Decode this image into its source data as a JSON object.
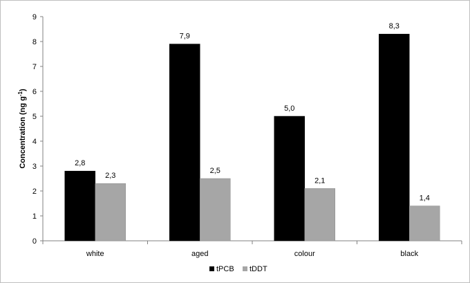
{
  "chart_data": {
    "type": "bar",
    "categories": [
      "white",
      "aged",
      "colour",
      "black"
    ],
    "series": [
      {
        "name": "tPCB",
        "color": "#000000",
        "values": [
          2.8,
          7.9,
          5.0,
          8.3
        ],
        "labels": [
          "2,8",
          "7,9",
          "5,0",
          "8,3"
        ]
      },
      {
        "name": "tDDT",
        "color": "#a6a6a6",
        "values": [
          2.3,
          2.5,
          2.1,
          1.4
        ],
        "labels": [
          "2,3",
          "2,5",
          "2,1",
          "1,4"
        ]
      }
    ],
    "title": "",
    "xlabel": "",
    "ylabel": "Concentration (ng g",
    "ylabel_sup": "-1",
    "ylabel_close": ")",
    "ylim": [
      0,
      9
    ],
    "yticks": [
      "0",
      "1",
      "2",
      "3",
      "4",
      "5",
      "6",
      "7",
      "8",
      "9"
    ],
    "grid": false,
    "legend_position": "bottom"
  }
}
